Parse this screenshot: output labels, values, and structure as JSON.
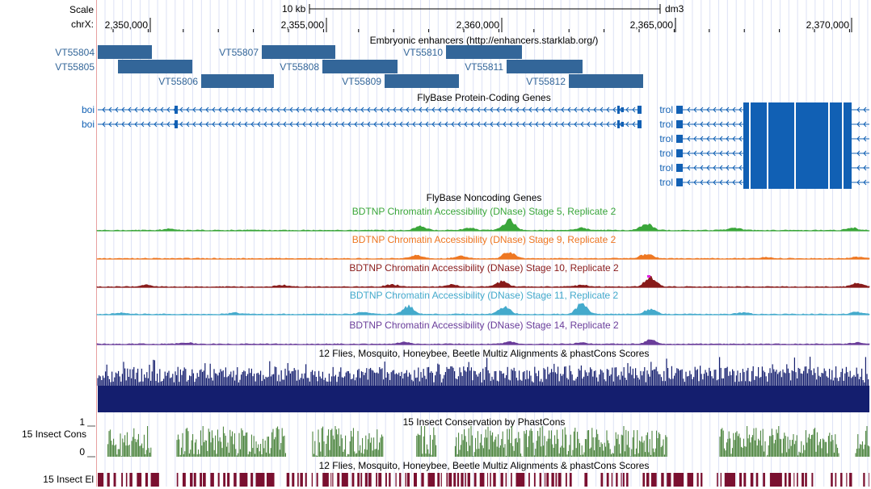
{
  "assembly": "dm3",
  "ruler": {
    "scale_label": "Scale",
    "chrom_label": "chrX:",
    "bar_label": "10 kb",
    "ticks": [
      "2,350,000",
      "2,355,000",
      "2,360,000",
      "2,365,000",
      "2,370,000"
    ]
  },
  "tracks": {
    "enhancers": {
      "title": "Embryonic enhancers (http://enhancers.starklab.org/)",
      "color": "#336699",
      "items": [
        "VT55804",
        "VT55805",
        "VT55806",
        "VT55807",
        "VT55808",
        "VT55809",
        "VT55810",
        "VT55811",
        "VT55812"
      ]
    },
    "flybase_coding": {
      "title": "FlyBase Protein-Coding Genes",
      "color": "#1160b4",
      "genes": [
        "boi",
        "boi",
        "trol",
        "trol",
        "trol",
        "trol",
        "trol",
        "trol"
      ]
    },
    "flybase_noncoding": {
      "title": "FlyBase Noncoding Genes",
      "color": "#2a7fc4"
    },
    "dnase": [
      {
        "title": "BDTNP Chromatin Accessibility (DNase) Stage 5, Replicate 2",
        "color": "#3aa63a"
      },
      {
        "title": "BDTNP Chromatin Accessibility (DNase) Stage 9, Replicate 2",
        "color": "#ee7722"
      },
      {
        "title": "BDTNP Chromatin Accessibility (DNase) Stage 10, Replicate 2",
        "color": "#881a1a"
      },
      {
        "title": "BDTNP Chromatin Accessibility (DNase) Stage 11, Replicate 2",
        "color": "#44aacc"
      },
      {
        "title": "BDTNP Chromatin Accessibility (DNase) Stage 14, Replicate 2",
        "color": "#6a3d9a"
      }
    ],
    "multiz": {
      "title": "12 Flies, Mosquito, Honeybee, Beetle Multiz Alignments & phastCons Scores",
      "color": "#141e6e"
    },
    "phastcons": {
      "title": "15 Insect Conservation by PhastCons",
      "side_label": "15 Insect Cons",
      "axis_max": "1",
      "axis_min": "0",
      "color": "#3d7a2e"
    },
    "elements": {
      "title": "12 Flies, Mosquito, Honeybee, Beetle Multiz Alignments & phastCons Scores",
      "side_label": "15 Insect El",
      "color": "#7a1030"
    }
  }
}
